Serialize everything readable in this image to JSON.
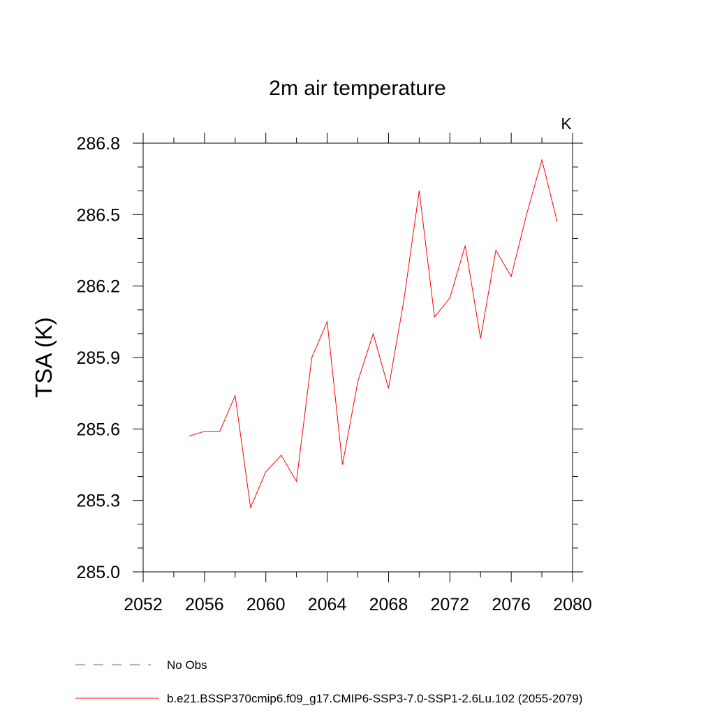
{
  "chart_data": {
    "type": "line",
    "title": "2m air temperature",
    "ylabel": "TSA  (K)",
    "unit_label": "K",
    "xlabel": "",
    "xlim": [
      2052,
      2080
    ],
    "ylim": [
      285.0,
      286.8
    ],
    "x_ticks": [
      2052,
      2056,
      2060,
      2064,
      2068,
      2072,
      2076,
      2080
    ],
    "y_ticks": [
      285.0,
      285.3,
      285.6,
      285.9,
      286.2,
      286.5,
      286.8
    ],
    "y_tick_labels": [
      "285.0",
      "285.3",
      "285.6",
      "285.9",
      "286.2",
      "286.5",
      "286.8"
    ],
    "grid": false,
    "legend_position": "bottom",
    "legend": [
      {
        "name": "No Obs",
        "style": "dashed",
        "color": "#6a5acd"
      },
      {
        "name": "b.e21.BSSP370cmip6.f09_g17.CMIP6-SSP3-7.0-SSP1-2.6Lu.102 (2055-2079)",
        "style": "solid",
        "color": "#ff0000"
      }
    ],
    "series": [
      {
        "name": "b.e21.BSSP370cmip6.f09_g17.CMIP6-SSP3-7.0-SSP1-2.6Lu.102 (2055-2079)",
        "color": "#ff0000",
        "x": [
          2055,
          2056,
          2057,
          2058,
          2059,
          2060,
          2061,
          2062,
          2063,
          2064,
          2065,
          2066,
          2067,
          2068,
          2069,
          2070,
          2071,
          2072,
          2073,
          2074,
          2075,
          2076,
          2077,
          2078,
          2079
        ],
        "y": [
          285.57,
          285.59,
          285.59,
          285.74,
          285.27,
          285.42,
          285.49,
          285.38,
          285.9,
          286.05,
          285.45,
          285.8,
          286.0,
          285.77,
          286.14,
          286.6,
          286.07,
          286.15,
          286.37,
          285.98,
          286.35,
          286.24,
          286.5,
          286.73,
          286.47
        ]
      }
    ]
  }
}
